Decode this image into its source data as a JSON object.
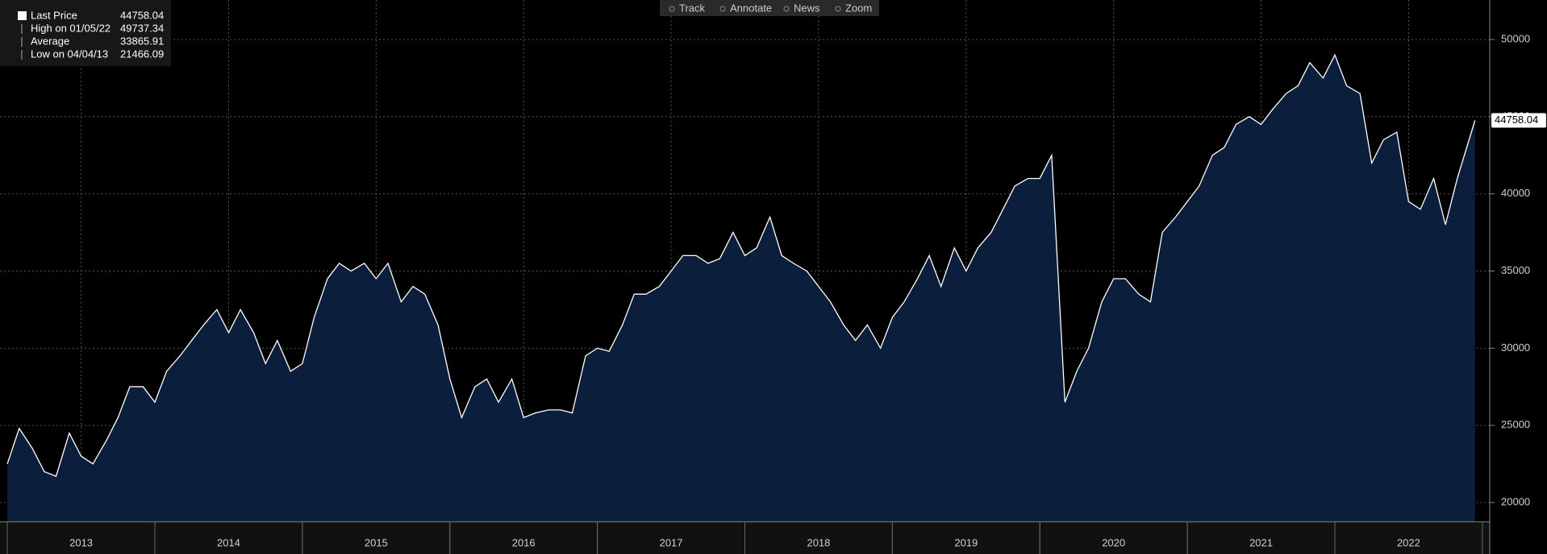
{
  "toolbar": [
    "Track",
    "Annotate",
    "News",
    "Zoom"
  ],
  "chart_data": {
    "type": "area",
    "legend": [
      {
        "name": "Last Price",
        "value": 44758.04
      },
      {
        "name": "High on 01/05/22",
        "value": 49737.34
      },
      {
        "name": "Average",
        "value": 33865.91
      },
      {
        "name": "Low on 04/04/13",
        "value": 21466.09
      }
    ],
    "x": [
      2013.0,
      2013.08,
      2013.17,
      2013.25,
      2013.33,
      2013.42,
      2013.5,
      2013.58,
      2013.67,
      2013.75,
      2013.83,
      2013.92,
      2014.0,
      2014.08,
      2014.17,
      2014.25,
      2014.33,
      2014.42,
      2014.5,
      2014.58,
      2014.67,
      2014.75,
      2014.83,
      2014.92,
      2015.0,
      2015.08,
      2015.17,
      2015.25,
      2015.33,
      2015.42,
      2015.5,
      2015.58,
      2015.67,
      2015.75,
      2015.83,
      2015.92,
      2016.0,
      2016.08,
      2016.17,
      2016.25,
      2016.33,
      2016.42,
      2016.5,
      2016.58,
      2016.67,
      2016.75,
      2016.83,
      2016.92,
      2017.0,
      2017.08,
      2017.17,
      2017.25,
      2017.33,
      2017.42,
      2017.5,
      2017.58,
      2017.67,
      2017.75,
      2017.83,
      2017.92,
      2018.0,
      2018.08,
      2018.17,
      2018.25,
      2018.33,
      2018.42,
      2018.5,
      2018.58,
      2018.67,
      2018.75,
      2018.83,
      2018.92,
      2019.0,
      2019.08,
      2019.17,
      2019.25,
      2019.33,
      2019.42,
      2019.5,
      2019.58,
      2019.67,
      2019.75,
      2019.83,
      2019.92,
      2020.0,
      2020.08,
      2020.17,
      2020.25,
      2020.33,
      2020.42,
      2020.5,
      2020.58,
      2020.67,
      2020.75,
      2020.83,
      2020.92,
      2021.0,
      2021.08,
      2021.17,
      2021.25,
      2021.33,
      2021.42,
      2021.5,
      2021.58,
      2021.67,
      2021.75,
      2021.83,
      2021.92,
      2022.0,
      2022.08,
      2022.17,
      2022.25,
      2022.33,
      2022.42,
      2022.5,
      2022.58,
      2022.67,
      2022.75,
      2022.83,
      2022.95
    ],
    "series": [
      {
        "name": "Last Price",
        "color": "#ffffff",
        "fill": "#0b1f3d",
        "values": [
          22500,
          24800,
          23500,
          22000,
          21700,
          24500,
          23000,
          22500,
          24000,
          25500,
          27500,
          27500,
          26500,
          28500,
          29500,
          30500,
          31500,
          32500,
          31000,
          32500,
          31000,
          29000,
          30500,
          28500,
          29000,
          32000,
          34500,
          35500,
          35000,
          35500,
          34500,
          35500,
          33000,
          34000,
          33500,
          31500,
          28000,
          25500,
          27500,
          28000,
          26500,
          28000,
          25500,
          25800,
          26000,
          26000,
          25800,
          29500,
          30000,
          29800,
          31500,
          33500,
          33500,
          34000,
          35000,
          36000,
          36000,
          35500,
          35800,
          37500,
          36000,
          36500,
          38500,
          36000,
          35500,
          35000,
          34000,
          33000,
          31500,
          30500,
          31500,
          30000,
          32000,
          33000,
          34500,
          36000,
          34000,
          36500,
          35000,
          36500,
          37500,
          39000,
          40500,
          41000,
          41000,
          42500,
          26500,
          28500,
          30000,
          33000,
          34500,
          34500,
          33500,
          33000,
          37500,
          38500,
          39500,
          40500,
          42500,
          43000,
          44500,
          45000,
          44500,
          45500,
          46500,
          47000,
          48500,
          47500,
          49000,
          47000,
          46500,
          42000,
          43500,
          44000,
          39500,
          39000,
          41000,
          38000,
          41000,
          44758.04
        ]
      }
    ],
    "xlim": [
      2012.95,
      2023.05
    ],
    "xticks": [
      {
        "value": 2013.5,
        "label": "2013"
      },
      {
        "value": 2014.5,
        "label": "2014"
      },
      {
        "value": 2015.5,
        "label": "2015"
      },
      {
        "value": 2016.5,
        "label": "2016"
      },
      {
        "value": 2017.5,
        "label": "2017"
      },
      {
        "value": 2018.5,
        "label": "2018"
      },
      {
        "value": 2019.5,
        "label": "2019"
      },
      {
        "value": 2020.5,
        "label": "2020"
      },
      {
        "value": 2021.5,
        "label": "2021"
      },
      {
        "value": 2022.5,
        "label": "2022"
      }
    ],
    "ylim": [
      18750,
      52560
    ],
    "yticks": [
      20000,
      25000,
      30000,
      35000,
      40000,
      45000,
      50000
    ],
    "grid": true
  }
}
